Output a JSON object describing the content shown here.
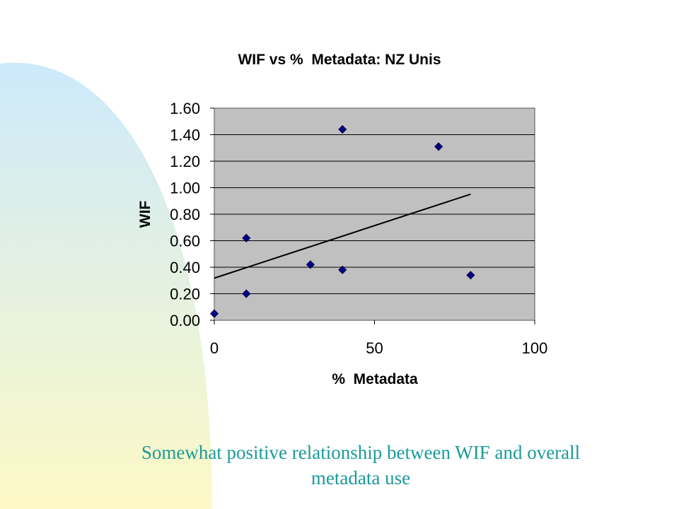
{
  "theme": {
    "accent_gradient_top": "#cce9fb",
    "accent_gradient_bottom": "#fdf9c6",
    "plot_background": "#c0c0c0",
    "marker_color": "#000080",
    "caption_color": "#1a9a9a"
  },
  "chart_data": {
    "type": "scatter",
    "title": "WIF vs %  Metadata: NZ Unis",
    "xlabel": "%  Metadata",
    "ylabel": "WIF",
    "xlim": [
      0,
      100
    ],
    "ylim": [
      0,
      1.6
    ],
    "x_ticks": [
      "0",
      "50",
      "100"
    ],
    "y_ticks": [
      "0.00",
      "0.20",
      "0.40",
      "0.60",
      "0.80",
      "1.00",
      "1.20",
      "1.40",
      "1.60"
    ],
    "grid": "horizontal",
    "points": [
      {
        "x": 0,
        "y": 0.05
      },
      {
        "x": 10,
        "y": 0.62
      },
      {
        "x": 10,
        "y": 0.2
      },
      {
        "x": 30,
        "y": 0.42
      },
      {
        "x": 40,
        "y": 1.44
      },
      {
        "x": 40,
        "y": 0.38
      },
      {
        "x": 70,
        "y": 1.31
      },
      {
        "x": 80,
        "y": 0.34
      }
    ],
    "trendline": {
      "type": "linear",
      "x_range": [
        0,
        80
      ]
    }
  },
  "caption": {
    "line1": "Somewhat positive relationship between WIF and overall",
    "line2": "metadata use"
  }
}
